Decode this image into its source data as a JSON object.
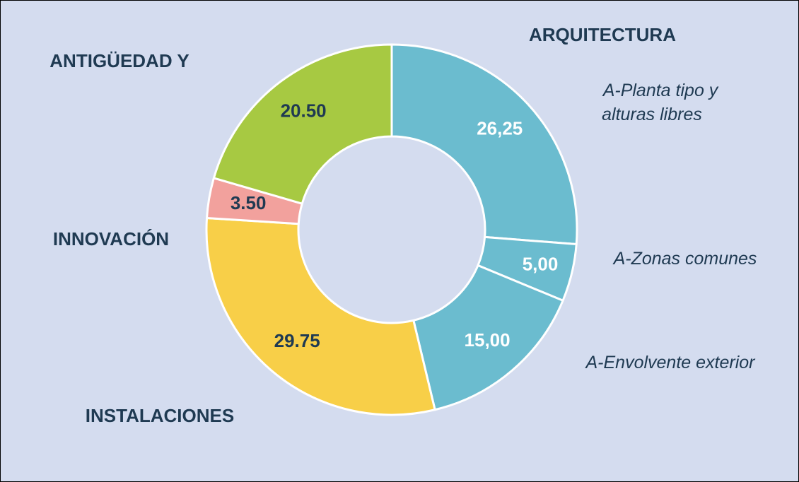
{
  "chart_data": {
    "type": "pie",
    "donut": true,
    "slices": [
      {
        "label": "A-Planta tipo y alturas libres",
        "value": 26.25,
        "display": "26,25",
        "color": "#6bbccf",
        "label_color": "#ffffff"
      },
      {
        "label": "A-Zonas comunes",
        "value": 5.0,
        "display": "5,00",
        "color": "#6bbccf",
        "label_color": "#ffffff"
      },
      {
        "label": "A-Envolvente exterior",
        "value": 15.0,
        "display": "15,00",
        "color": "#6bbccf",
        "label_color": "#ffffff"
      },
      {
        "label": "INSTALACIONES",
        "value": 29.75,
        "display": "29.75",
        "color": "#f8cf48",
        "label_color": "#1f3a52"
      },
      {
        "label": "INNOVACIÓN",
        "value": 3.5,
        "display": "3.50",
        "color": "#f2a19d",
        "label_color": "#1f3a52"
      },
      {
        "label": "ANTIGÜEDAD Y",
        "value": 20.5,
        "display": "20.50",
        "color": "#a7c942",
        "label_color": "#1f3a52"
      }
    ],
    "category_labels": {
      "arquitectura": "ARQUITECTURA",
      "antiguedad": "ANTIGÜEDAD Y",
      "innovacion": "INNOVACIÓN",
      "instalaciones": "INSTALACIONES"
    },
    "sub_labels": {
      "planta_line1": "A-Planta tipo y",
      "planta_line2": "alturas libres",
      "zonas": "A-Zonas comunes",
      "envolvente": "A-Envolvente exterior"
    }
  },
  "colors": {
    "background": "#d4dcef",
    "text": "#1f3a52",
    "slice_border": "#ffffff"
  }
}
